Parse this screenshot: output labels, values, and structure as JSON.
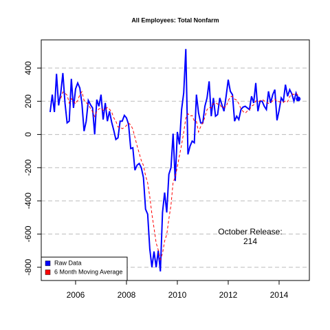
{
  "chart_data": {
    "type": "line",
    "title": "All Employees: Total Nonfarm",
    "x": [
      2005,
      2005.083,
      2005.167,
      2005.25,
      2005.333,
      2005.417,
      2005.5,
      2005.583,
      2005.667,
      2005.75,
      2005.833,
      2005.917,
      2006,
      2006.083,
      2006.167,
      2006.25,
      2006.333,
      2006.417,
      2006.5,
      2006.583,
      2006.667,
      2006.75,
      2006.833,
      2006.917,
      2007,
      2007.083,
      2007.167,
      2007.25,
      2007.333,
      2007.417,
      2007.5,
      2007.583,
      2007.667,
      2007.75,
      2007.833,
      2007.917,
      2008,
      2008.083,
      2008.167,
      2008.25,
      2008.333,
      2008.417,
      2008.5,
      2008.583,
      2008.667,
      2008.75,
      2008.833,
      2008.917,
      2009,
      2009.083,
      2009.167,
      2009.25,
      2009.333,
      2009.417,
      2009.5,
      2009.583,
      2009.667,
      2009.75,
      2009.833,
      2009.917,
      2010,
      2010.083,
      2010.167,
      2010.25,
      2010.333,
      2010.417,
      2010.5,
      2010.583,
      2010.667,
      2010.75,
      2010.833,
      2010.917,
      2011,
      2011.083,
      2011.167,
      2011.25,
      2011.333,
      2011.417,
      2011.5,
      2011.583,
      2011.667,
      2011.75,
      2011.833,
      2011.917,
      2012,
      2012.083,
      2012.167,
      2012.25,
      2012.333,
      2012.417,
      2012.5,
      2012.583,
      2012.667,
      2012.75,
      2012.833,
      2012.917,
      2013,
      2013.083,
      2013.167,
      2013.25,
      2013.333,
      2013.417,
      2013.5,
      2013.583,
      2013.667,
      2013.75,
      2013.833,
      2013.917,
      2014,
      2014.083,
      2014.167,
      2014.25,
      2014.333,
      2014.417,
      2014.5,
      2014.583,
      2014.667,
      2014.75
    ],
    "series": [
      {
        "name": "Raw Data",
        "color": "#0000ff",
        "values": [
          135,
          240,
          135,
          365,
          175,
          250,
          370,
          190,
          70,
          80,
          335,
          160,
          275,
          310,
          280,
          185,
          20,
          80,
          205,
          180,
          160,
          0,
          210,
          170,
          240,
          90,
          190,
          80,
          140,
          75,
          25,
          -30,
          -20,
          80,
          80,
          115,
          100,
          60,
          -85,
          -80,
          -215,
          -185,
          -175,
          -200,
          -260,
          -450,
          -480,
          -690,
          -800,
          -705,
          -800,
          -700,
          -825,
          -470,
          -350,
          -470,
          -240,
          -200,
          5,
          -280,
          15,
          -60,
          150,
          250,
          515,
          -120,
          -70,
          -40,
          -50,
          240,
          130,
          70,
          70,
          170,
          220,
          320,
          110,
          220,
          110,
          120,
          220,
          180,
          140,
          230,
          330,
          260,
          240,
          80,
          110,
          90,
          150,
          165,
          170,
          160,
          150,
          230,
          190,
          310,
          140,
          200,
          200,
          170,
          150,
          260,
          190,
          240,
          270,
          85,
          145,
          220,
          200,
          300,
          230,
          270,
          245,
          200,
          250,
          214
        ]
      },
      {
        "name": "6 Month Moving Average",
        "color": "#ff0000",
        "values": [
          null,
          null,
          null,
          null,
          null,
          217,
          256,
          248,
          237,
          189,
          216,
          201,
          185,
          205,
          240,
          258,
          205,
          192,
          180,
          158,
          138,
          108,
          139,
          154,
          160,
          145,
          150,
          163,
          152,
          136,
          100,
          80,
          45,
          45,
          35,
          42,
          54,
          69,
          58,
          32,
          -18,
          -68,
          -113,
          -157,
          -186,
          -248,
          -292,
          -376,
          -480,
          -564,
          -654,
          -696,
          -753,
          -717,
          -642,
          -603,
          -509,
          -426,
          -288,
          -256,
          -195,
          -127,
          -62,
          13,
          98,
          125,
          111,
          114,
          81,
          79,
          15,
          47,
          70,
          105,
          150,
          163,
          160,
          185,
          192,
          183,
          183,
          160,
          165,
          167,
          203,
          227,
          230,
          213,
          208,
          185,
          155,
          139,
          128,
          141,
          148,
          171,
          178,
          202,
          197,
          203,
          212,
          202,
          195,
          187,
          195,
          202,
          213,
          199,
          198,
          192,
          193,
          203,
          197,
          228,
          244,
          241,
          249,
          235
        ]
      }
    ],
    "annotation": "October Release:",
    "xlim": [
      2004.65,
      2015.19
    ],
    "xticks": [
      2006,
      2008,
      2010,
      2012,
      2014
    ],
    "ylim": [
      -880,
      570
    ],
    "yticks": [
      -800,
      -600,
      -400,
      -200,
      0,
      200,
      400
    ],
    "grid": true,
    "legend": "bottomleft"
  }
}
